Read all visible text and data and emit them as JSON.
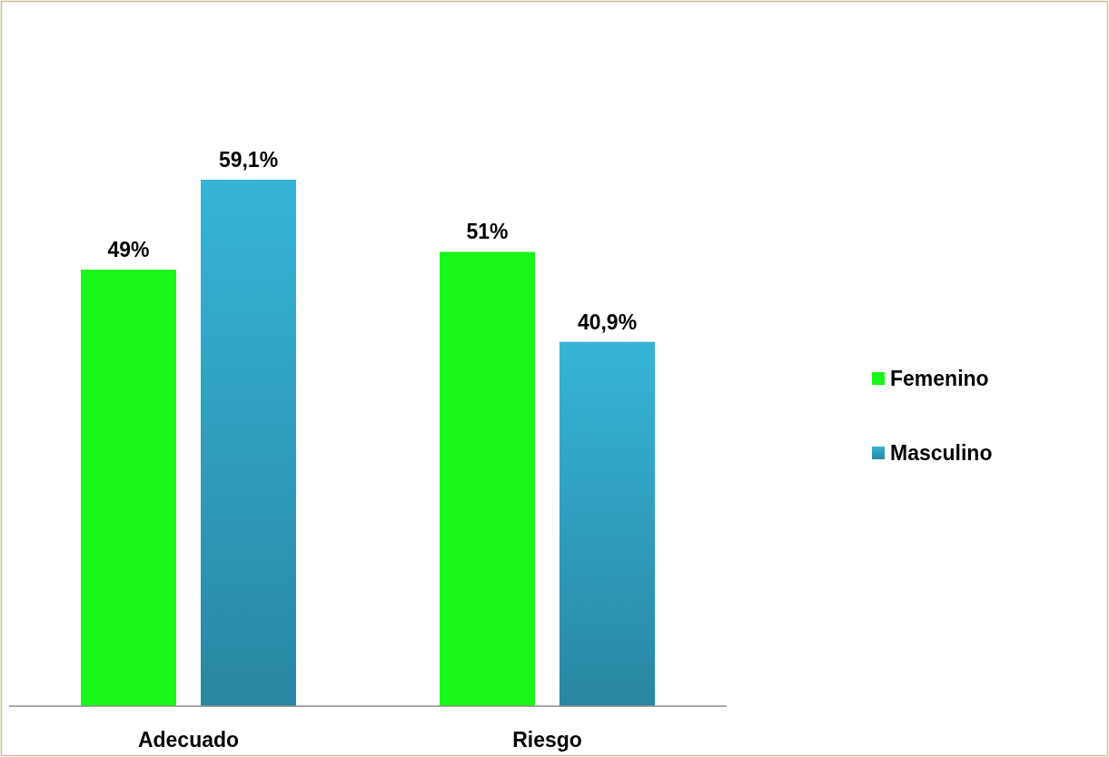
{
  "chart_data": {
    "type": "bar",
    "categories": [
      "Adecuado",
      "Riesgo"
    ],
    "series": [
      {
        "name": "Femenino",
        "color": "#1bf61b",
        "values": [
          49,
          51
        ],
        "value_labels": [
          "49%",
          "51%"
        ]
      },
      {
        "name": "Masculino",
        "color": "#36b4d8",
        "values": [
          59.1,
          40.9
        ],
        "value_labels": [
          "59,1%",
          "40,9%"
        ]
      }
    ],
    "legend": "right"
  }
}
